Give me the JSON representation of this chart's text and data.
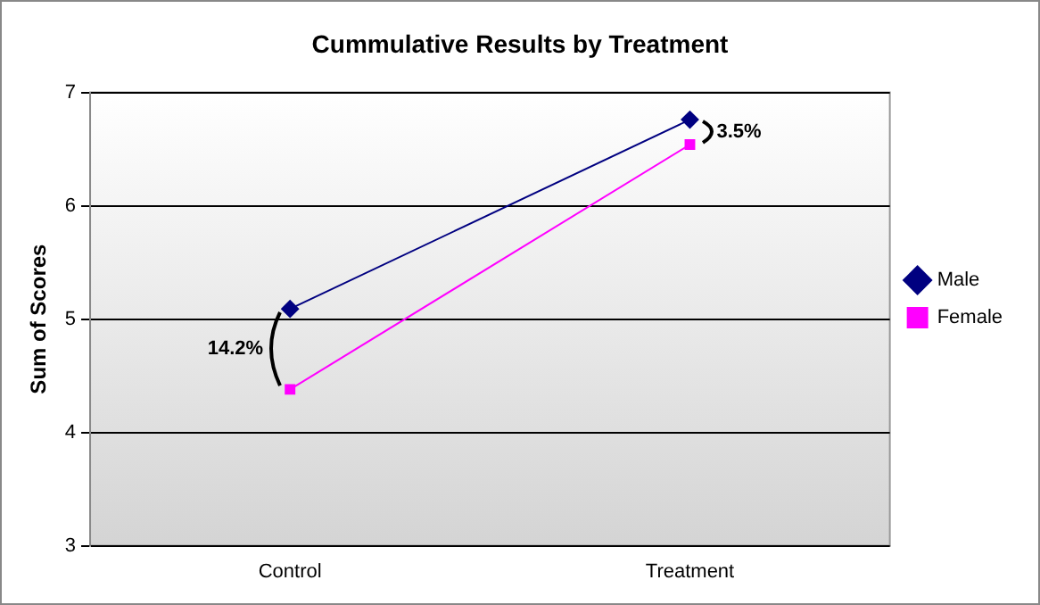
{
  "chart_data": {
    "type": "line",
    "title": "Cummulative Results by Treatment",
    "ylabel": "Sum of Scores",
    "categories": [
      "Control",
      "Treatment"
    ],
    "series": [
      {
        "name": "Male",
        "color": "#000080",
        "marker": "diamond",
        "values": [
          5.09,
          6.76
        ]
      },
      {
        "name": "Female",
        "color": "#ff00ff",
        "marker": "square",
        "values": [
          4.38,
          6.54
        ]
      }
    ],
    "ylim": [
      3,
      7
    ],
    "yticks": [
      3,
      4,
      5,
      6,
      7
    ],
    "grid": "y",
    "legend": "right",
    "annotations": [
      "14.2%",
      "3.5%"
    ]
  }
}
